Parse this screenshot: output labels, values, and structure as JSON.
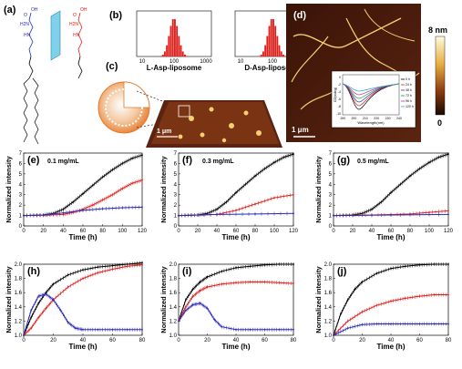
{
  "panel_labels": {
    "a": "(a)",
    "b": "(b)",
    "c": "(c)",
    "d": "(d)",
    "e": "(e)",
    "f": "(f)",
    "g": "(g)",
    "h": "(h)",
    "i": "(i)",
    "j": "(j)"
  },
  "molecule": {
    "groups_left": [
      "OH",
      "O",
      "H2N",
      "HN"
    ],
    "groups_right": [
      "OH",
      "O",
      "H2N",
      "HN"
    ]
  },
  "histograms": [
    {
      "caption": "L-Asp-liposome",
      "xticks": [
        "10",
        "100",
        "1000"
      ]
    },
    {
      "caption": "D-Asp-liposome",
      "xticks": [
        "10",
        "100",
        "1000"
      ]
    }
  ],
  "afm_c": {
    "scale": "1 μm"
  },
  "afm_d": {
    "scale": "1 μm",
    "colorbar_top": "8 nm",
    "colorbar_bottom": "0"
  },
  "cd_inset": {
    "ylabel": "CD(mdeg)",
    "xlabel": "Wavelength(nm)",
    "xticks": [
      "190",
      "200",
      "210",
      "220",
      "230",
      "240"
    ],
    "yticks": [
      "0",
      "-2",
      "-4",
      "-6",
      "-8",
      "-10"
    ],
    "legend": [
      "0 h",
      "24 h",
      "48 h",
      "72 h",
      "96 h",
      "120 h"
    ],
    "colors": [
      "#000000",
      "#e0201c",
      "#2a2ab8",
      "#1a9a3a",
      "#c52aa8",
      "#2aa8c8"
    ]
  },
  "chart_data": [
    {
      "type": "line",
      "panel": "e",
      "annotation": "0.1 mg/mL",
      "xlabel": "Time (h)",
      "ylabel": "Normalized intensity",
      "xlim": [
        0,
        120
      ],
      "ylim": [
        0,
        7
      ],
      "xticks": [
        0,
        20,
        40,
        60,
        80,
        100,
        120
      ],
      "yticks": [
        0,
        1,
        2,
        3,
        4,
        5,
        6,
        7
      ],
      "series": [
        {
          "color": "#000000",
          "x": [
            0,
            20,
            30,
            40,
            50,
            60,
            70,
            80,
            90,
            100,
            110,
            120
          ],
          "y": [
            1,
            1.05,
            1.2,
            1.6,
            2.3,
            3.1,
            3.9,
            4.7,
            5.4,
            6.0,
            6.5,
            6.8
          ]
        },
        {
          "color": "#e0201c",
          "x": [
            0,
            20,
            40,
            50,
            60,
            70,
            80,
            90,
            100,
            110,
            120
          ],
          "y": [
            1,
            1.02,
            1.1,
            1.3,
            1.6,
            2.0,
            2.5,
            3.0,
            3.6,
            4.1,
            4.4
          ]
        },
        {
          "color": "#2a2ab8",
          "x": [
            0,
            20,
            40,
            60,
            80,
            100,
            120
          ],
          "y": [
            1,
            1.05,
            1.25,
            1.5,
            1.65,
            1.75,
            1.8
          ]
        }
      ]
    },
    {
      "type": "line",
      "panel": "f",
      "annotation": "0.3 mg/mL",
      "xlabel": "Time (h)",
      "ylabel": "Normalized intensity",
      "xlim": [
        0,
        120
      ],
      "ylim": [
        0,
        7
      ],
      "xticks": [
        0,
        20,
        40,
        60,
        80,
        100,
        120
      ],
      "yticks": [
        0,
        1,
        2,
        3,
        4,
        5,
        6,
        7
      ],
      "series": [
        {
          "color": "#000000",
          "x": [
            0,
            20,
            30,
            40,
            50,
            60,
            70,
            80,
            90,
            100,
            110,
            120
          ],
          "y": [
            1,
            1.05,
            1.2,
            1.6,
            2.3,
            3.2,
            4.0,
            4.8,
            5.5,
            6.1,
            6.6,
            6.9
          ]
        },
        {
          "color": "#e0201c",
          "x": [
            0,
            40,
            60,
            80,
            100,
            120
          ],
          "y": [
            1,
            1.1,
            1.5,
            2.1,
            2.7,
            3.0
          ]
        },
        {
          "color": "#2a2ab8",
          "x": [
            0,
            40,
            80,
            120
          ],
          "y": [
            1,
            1.1,
            1.15,
            1.2
          ]
        }
      ]
    },
    {
      "type": "line",
      "panel": "g",
      "annotation": "0.5 mg/mL",
      "xlabel": "Time (h)",
      "ylabel": "Normalized intensity",
      "xlim": [
        0,
        120
      ],
      "ylim": [
        0,
        7
      ],
      "xticks": [
        0,
        20,
        40,
        60,
        80,
        100,
        120
      ],
      "yticks": [
        0,
        1,
        2,
        3,
        4,
        5,
        6,
        7
      ],
      "series": [
        {
          "color": "#000000",
          "x": [
            0,
            20,
            30,
            40,
            50,
            60,
            70,
            80,
            90,
            100,
            110,
            120
          ],
          "y": [
            1,
            1.05,
            1.2,
            1.6,
            2.3,
            3.2,
            4.0,
            4.8,
            5.5,
            6.1,
            6.6,
            6.9
          ]
        },
        {
          "color": "#e0201c",
          "x": [
            0,
            40,
            80,
            100,
            120
          ],
          "y": [
            1,
            1.05,
            1.15,
            1.3,
            1.45
          ]
        },
        {
          "color": "#2a2ab8",
          "x": [
            0,
            60,
            120
          ],
          "y": [
            1,
            1.05,
            1.1
          ]
        }
      ]
    },
    {
      "type": "line",
      "panel": "h",
      "xlabel": "Time (h)",
      "ylabel": "Normalized intensity",
      "xlim": [
        0,
        80
      ],
      "ylim": [
        1.0,
        2.0
      ],
      "xticks": [
        0,
        20,
        40,
        60,
        80
      ],
      "yticks": [
        1.0,
        1.2,
        1.4,
        1.6,
        1.8,
        2.0
      ],
      "series": [
        {
          "color": "#000000",
          "x": [
            0,
            5,
            10,
            15,
            20,
            30,
            40,
            50,
            60,
            70,
            80
          ],
          "y": [
            1.0,
            1.25,
            1.45,
            1.6,
            1.72,
            1.85,
            1.92,
            1.96,
            1.98,
            2.0,
            2.02
          ]
        },
        {
          "color": "#e0201c",
          "x": [
            0,
            5,
            10,
            15,
            20,
            30,
            40,
            50,
            60,
            70,
            80
          ],
          "y": [
            1.0,
            1.1,
            1.25,
            1.38,
            1.5,
            1.68,
            1.8,
            1.88,
            1.93,
            1.97,
            1.99
          ]
        },
        {
          "color": "#2a2ab8",
          "x": [
            0,
            5,
            10,
            15,
            20,
            25,
            30,
            35,
            40,
            50,
            60,
            70,
            80
          ],
          "y": [
            1.0,
            1.35,
            1.55,
            1.58,
            1.5,
            1.35,
            1.18,
            1.1,
            1.08,
            1.08,
            1.08,
            1.08,
            1.08
          ]
        }
      ]
    },
    {
      "type": "line",
      "panel": "i",
      "xlabel": "Time (h)",
      "ylabel": "Normalized intensity",
      "xlim": [
        0,
        80
      ],
      "ylim": [
        1.0,
        2.0
      ],
      "xticks": [
        0,
        20,
        40,
        60,
        80
      ],
      "yticks": [
        1.0,
        1.2,
        1.4,
        1.6,
        1.8,
        2.0
      ],
      "series": [
        {
          "color": "#000000",
          "x": [
            0,
            5,
            10,
            15,
            20,
            30,
            40,
            50,
            60,
            70,
            80
          ],
          "y": [
            1.2,
            1.5,
            1.65,
            1.75,
            1.82,
            1.9,
            1.95,
            1.97,
            1.99,
            2.0,
            2.0
          ]
        },
        {
          "color": "#e0201c",
          "x": [
            0,
            5,
            10,
            15,
            20,
            30,
            40,
            50,
            60,
            70,
            80
          ],
          "y": [
            1.2,
            1.4,
            1.55,
            1.63,
            1.68,
            1.72,
            1.74,
            1.75,
            1.75,
            1.74,
            1.73
          ]
        },
        {
          "color": "#2a2ab8",
          "x": [
            0,
            5,
            10,
            15,
            20,
            25,
            30,
            40,
            50,
            60,
            70,
            80
          ],
          "y": [
            1.2,
            1.35,
            1.43,
            1.45,
            1.38,
            1.22,
            1.12,
            1.08,
            1.08,
            1.08,
            1.08,
            1.08
          ]
        }
      ]
    },
    {
      "type": "line",
      "panel": "j",
      "xlabel": "Time (h)",
      "ylabel": "Normalized intensity",
      "xlim": [
        0,
        80
      ],
      "ylim": [
        1.0,
        2.0
      ],
      "xticks": [
        0,
        20,
        40,
        60,
        80
      ],
      "yticks": [
        1.0,
        1.2,
        1.4,
        1.6,
        1.8,
        2.0
      ],
      "series": [
        {
          "color": "#000000",
          "x": [
            0,
            5,
            10,
            15,
            20,
            30,
            40,
            50,
            60,
            70,
            80
          ],
          "y": [
            1.0,
            1.3,
            1.5,
            1.65,
            1.75,
            1.87,
            1.94,
            1.97,
            1.99,
            2.0,
            2.0
          ]
        },
        {
          "color": "#e0201c",
          "x": [
            0,
            10,
            20,
            30,
            40,
            50,
            60,
            70,
            80
          ],
          "y": [
            1.0,
            1.2,
            1.33,
            1.42,
            1.48,
            1.52,
            1.55,
            1.57,
            1.57
          ]
        },
        {
          "color": "#2a2ab8",
          "x": [
            0,
            10,
            20,
            30,
            40,
            50,
            60,
            70,
            80
          ],
          "y": [
            1.0,
            1.1,
            1.15,
            1.16,
            1.16,
            1.16,
            1.16,
            1.16,
            1.16
          ]
        }
      ]
    }
  ]
}
